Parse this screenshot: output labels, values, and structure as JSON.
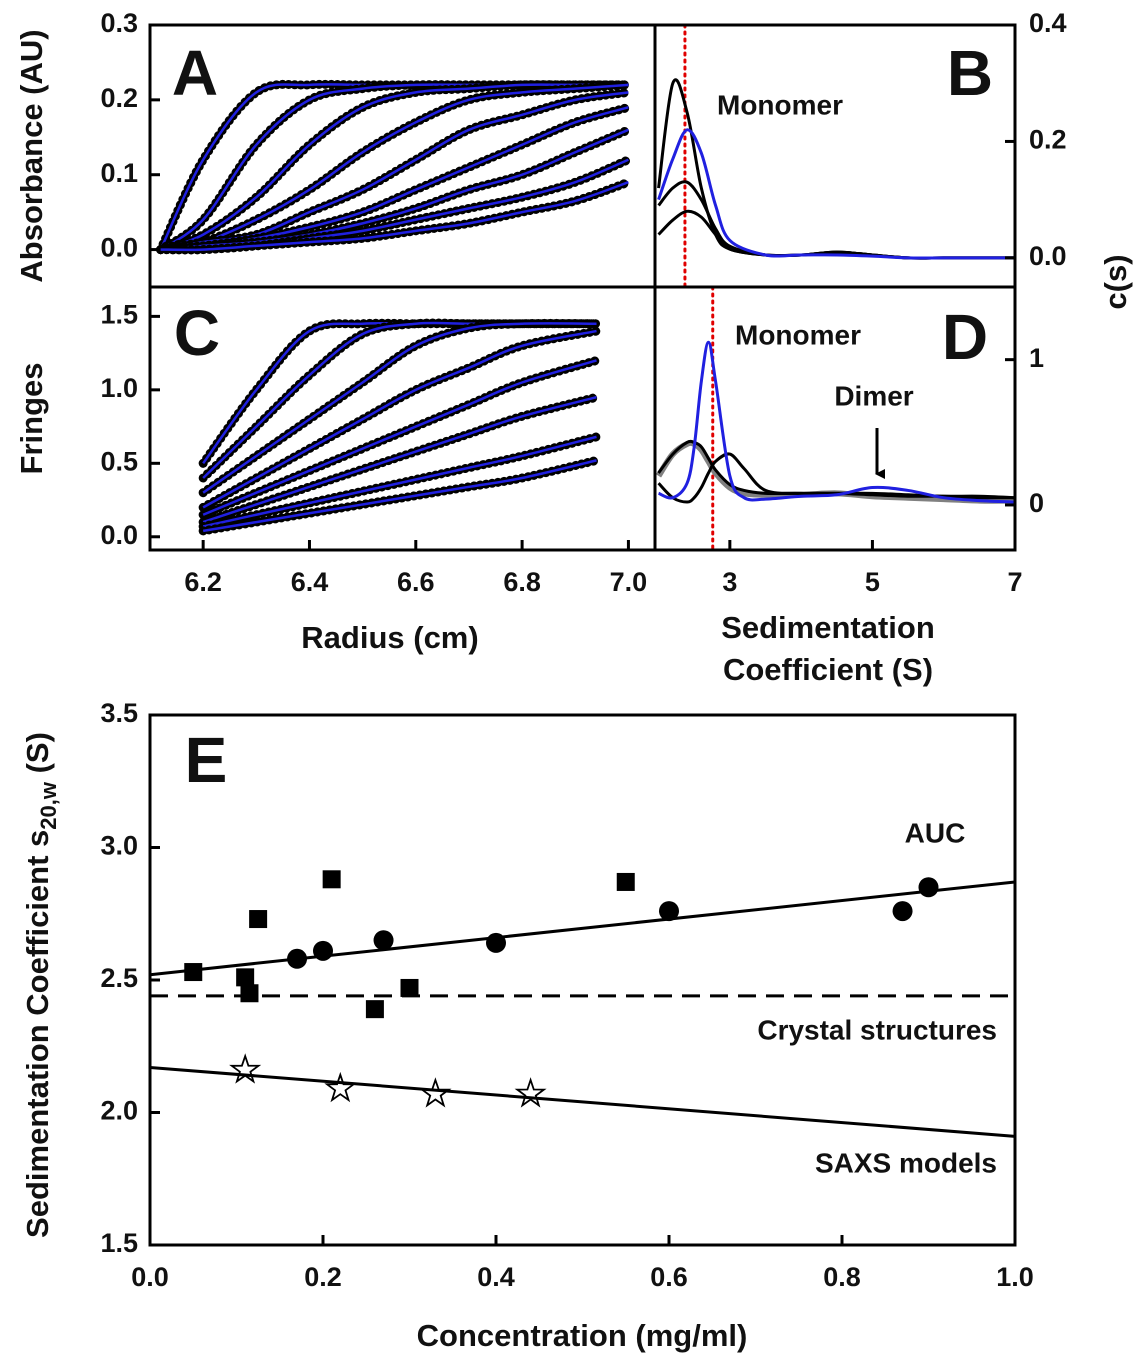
{
  "chart_data": [
    {
      "type": "line",
      "panel": "A",
      "ylabel": "Absorbance (AU)",
      "xlim": [
        6.1,
        7.05
      ],
      "ylim": [
        -0.05,
        0.3
      ],
      "yticks": [
        {
          "value": 0,
          "label": "0.0"
        },
        0.1,
        0.2,
        0.3
      ],
      "x": [
        6.12,
        6.2,
        6.3,
        6.4,
        6.5,
        6.6,
        6.7,
        6.8,
        6.9,
        7.0
      ],
      "style": "profile",
      "data_color": "#000000",
      "fit_color": "#2020e0",
      "series": [
        {
          "values": [
            0.0,
            0.12,
            0.21,
            0.22,
            0.22,
            0.22,
            0.22,
            0.22,
            0.22,
            0.22
          ]
        },
        {
          "values": [
            0.0,
            0.04,
            0.14,
            0.2,
            0.215,
            0.22,
            0.22,
            0.22,
            0.22,
            0.22
          ]
        },
        {
          "values": [
            0.0,
            0.02,
            0.07,
            0.14,
            0.19,
            0.21,
            0.215,
            0.22,
            0.22,
            0.22
          ]
        },
        {
          "values": [
            0.0,
            0.01,
            0.04,
            0.08,
            0.13,
            0.17,
            0.2,
            0.21,
            0.215,
            0.22
          ]
        },
        {
          "values": [
            0.0,
            0.01,
            0.02,
            0.05,
            0.08,
            0.12,
            0.16,
            0.18,
            0.2,
            0.21
          ]
        },
        {
          "values": [
            0.0,
            0.005,
            0.015,
            0.03,
            0.05,
            0.08,
            0.11,
            0.14,
            0.17,
            0.19
          ]
        },
        {
          "values": [
            0.0,
            0.005,
            0.01,
            0.02,
            0.035,
            0.055,
            0.08,
            0.1,
            0.13,
            0.16
          ]
        },
        {
          "values": [
            0.0,
            0.0,
            0.005,
            0.015,
            0.025,
            0.04,
            0.055,
            0.07,
            0.09,
            0.12
          ]
        },
        {
          "values": [
            0.0,
            0.0,
            0.005,
            0.01,
            0.015,
            0.025,
            0.035,
            0.05,
            0.065,
            0.09
          ]
        }
      ]
    },
    {
      "type": "line",
      "panel": "B",
      "ylabel": "c(s)",
      "yaxis_side": "right",
      "xlim": [
        1.95,
        7
      ],
      "ylim": [
        -0.05,
        0.4
      ],
      "yticks": [
        {
          "value": 0,
          "label": "0.0"
        },
        0.2,
        0.4
      ],
      "x": [
        2.0,
        2.2,
        2.4,
        2.6,
        2.8,
        3.0,
        3.5,
        4,
        4.5,
        5,
        5.5,
        6,
        6.5,
        7
      ],
      "vline": 2.37,
      "vline_color": "#e00000",
      "annotations": [
        "Monomer"
      ],
      "series": [
        {
          "color": "#000000",
          "values": [
            0.12,
            0.3,
            0.25,
            0.12,
            0.04,
            0.015,
            0.005,
            0.005,
            0.01,
            0.005,
            0,
            0,
            0,
            0
          ]
        },
        {
          "color": "#000000",
          "values": [
            0.09,
            0.12,
            0.13,
            0.1,
            0.05,
            0.02,
            0.005,
            0.005,
            0.01,
            0.005,
            0,
            0,
            0,
            0
          ]
        },
        {
          "color": "#000000",
          "values": [
            0.04,
            0.065,
            0.08,
            0.07,
            0.04,
            0.015,
            0.005,
            0.005,
            0.01,
            0.005,
            0,
            0,
            0,
            0
          ]
        },
        {
          "color": "#2020e0",
          "values": [
            0.1,
            0.17,
            0.22,
            0.18,
            0.09,
            0.03,
            0.005,
            0.005,
            0.005,
            0.003,
            0,
            0,
            0,
            0
          ]
        }
      ]
    },
    {
      "type": "line",
      "panel": "C",
      "ylabel": "Fringes",
      "xlabel": "Radius (cm)",
      "xlim": [
        6.1,
        7.05
      ],
      "ylim": [
        -0.09,
        1.7
      ],
      "xticks": [
        6.2,
        6.4,
        6.6,
        6.8,
        {
          "value": 7,
          "label": "7.0"
        }
      ],
      "yticks": [
        {
          "value": 0,
          "label": "0.0"
        },
        0.5,
        {
          "value": 1,
          "label": "1.0"
        },
        1.5
      ],
      "x": [
        6.2,
        6.3,
        6.4,
        6.5,
        6.6,
        6.7,
        6.8,
        6.94
      ],
      "style": "profile",
      "data_color": "#000000",
      "fit_color": "#2020e0",
      "series": [
        {
          "values": [
            0.5,
            1.0,
            1.4,
            1.45,
            1.45,
            1.45,
            1.45,
            1.45
          ]
        },
        {
          "values": [
            0.4,
            0.75,
            1.1,
            1.38,
            1.45,
            1.45,
            1.45,
            1.45
          ]
        },
        {
          "values": [
            0.3,
            0.55,
            0.8,
            1.05,
            1.3,
            1.42,
            1.45,
            1.45
          ]
        },
        {
          "values": [
            0.2,
            0.4,
            0.6,
            0.8,
            1.0,
            1.15,
            1.3,
            1.4
          ]
        },
        {
          "values": [
            0.15,
            0.3,
            0.45,
            0.6,
            0.75,
            0.9,
            1.05,
            1.2
          ]
        },
        {
          "values": [
            0.1,
            0.22,
            0.34,
            0.46,
            0.58,
            0.7,
            0.82,
            0.95
          ]
        },
        {
          "values": [
            0.07,
            0.15,
            0.23,
            0.31,
            0.39,
            0.47,
            0.55,
            0.68
          ]
        },
        {
          "values": [
            0.04,
            0.1,
            0.16,
            0.22,
            0.28,
            0.34,
            0.4,
            0.52
          ]
        }
      ]
    },
    {
      "type": "line",
      "panel": "D",
      "yaxis_side": "right",
      "xlabel": [
        "Sedimentation",
        "Coefficient (S)"
      ],
      "xlim": [
        1.95,
        7
      ],
      "ylim": [
        -0.31,
        1.5
      ],
      "xticks": [
        3,
        5,
        7
      ],
      "yticks": [
        0,
        1
      ],
      "x": [
        2.0,
        2.2,
        2.4,
        2.5,
        2.6,
        2.7,
        2.8,
        3.0,
        3.2,
        3.5,
        4,
        4.5,
        5,
        5.5,
        6,
        6.5,
        7
      ],
      "vline": 2.76,
      "vline_color": "#e00000",
      "annotations": [
        "Monomer",
        "Dimer"
      ],
      "series": [
        {
          "color": "#808080",
          "values": [
            0.2,
            0.35,
            0.42,
            0.42,
            0.38,
            0.3,
            0.22,
            0.12,
            0.08,
            0.07,
            0.07,
            0.08,
            0.06,
            0.05,
            0.04,
            0.03,
            0.03
          ]
        },
        {
          "color": "#000000",
          "values": [
            0.22,
            0.35,
            0.43,
            0.43,
            0.4,
            0.32,
            0.24,
            0.14,
            0.1,
            0.08,
            0.08,
            0.08,
            0.07,
            0.06,
            0.06,
            0.05,
            0.05
          ]
        },
        {
          "color": "#000000",
          "values": [
            0.15,
            0.05,
            0.02,
            0.05,
            0.12,
            0.22,
            0.3,
            0.35,
            0.25,
            0.1,
            0.08,
            0.08,
            0.08,
            0.07,
            0.06,
            0.06,
            0.05
          ]
        },
        {
          "color": "#2020e0",
          "values": [
            0.08,
            0.05,
            0.15,
            0.4,
            0.85,
            1.12,
            0.85,
            0.2,
            0.05,
            0.04,
            0.06,
            0.07,
            0.12,
            0.1,
            0.05,
            0.03,
            0.02
          ]
        }
      ]
    },
    {
      "type": "scatter",
      "panel": "E",
      "ylabel": {
        "text": "Sedimentation Coefficient s",
        "subscript": "20,w",
        "suffix": " (S)"
      },
      "xlabel": "Concentration (mg/ml)",
      "xlim": [
        0,
        1
      ],
      "ylim": [
        1.5,
        3.5
      ],
      "xticks": [
        {
          "value": 0,
          "label": "0.0"
        },
        0.2,
        0.4,
        0.6,
        0.8,
        {
          "value": 1,
          "label": "1.0"
        }
      ],
      "yticks": [
        1.5,
        {
          "value": 2,
          "label": "2.0"
        },
        2.5,
        {
          "value": 3,
          "label": "3.0"
        },
        3.5
      ],
      "annotations": [
        "AUC",
        "Crystal structures",
        "SAXS models"
      ],
      "hline": 2.44,
      "series": [
        {
          "marker": "square",
          "color": "#000000",
          "x": [
            0.05,
            0.11,
            0.115,
            0.125,
            0.21,
            0.26,
            0.3,
            0.55
          ],
          "values": [
            2.53,
            2.51,
            2.45,
            2.73,
            2.88,
            2.39,
            2.47,
            2.87
          ]
        },
        {
          "marker": "circle",
          "color": "#000000",
          "x": [
            0.17,
            0.2,
            0.27,
            0.4,
            0.6,
            0.87,
            0.9
          ],
          "values": [
            2.58,
            2.61,
            2.65,
            2.64,
            2.76,
            2.76,
            2.85
          ]
        },
        {
          "marker": "star",
          "color": "#000000",
          "x": [
            0.11,
            0.22,
            0.33,
            0.44
          ],
          "values": [
            2.16,
            2.09,
            2.07,
            2.07
          ]
        },
        {
          "marker": "line",
          "color": "#000000",
          "x": [
            0,
            1
          ],
          "values": [
            2.52,
            2.87
          ]
        },
        {
          "marker": "line",
          "color": "#000000",
          "x": [
            0,
            1
          ],
          "values": [
            2.17,
            1.91
          ]
        }
      ]
    }
  ]
}
